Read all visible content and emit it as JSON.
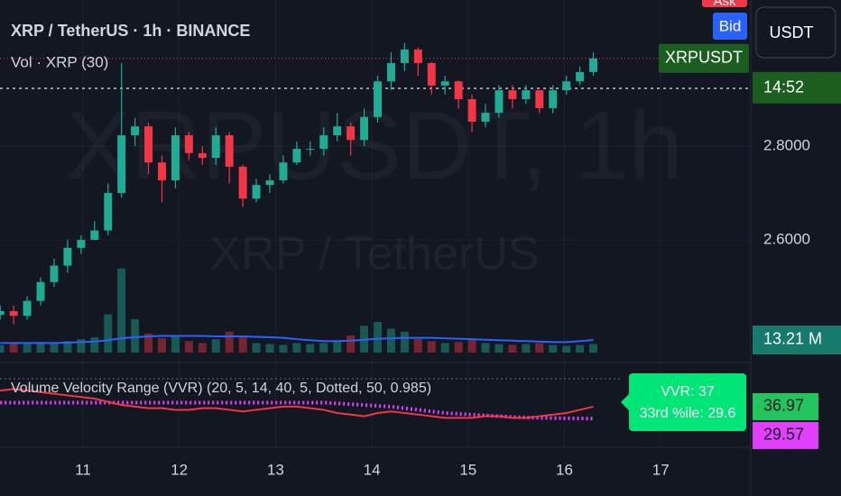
{
  "header": {
    "title": "XRP / TetherUS · 1h · BINANCE",
    "volume_label": "Vol · XRP (30)",
    "indicator_label": "Volume Velocity Range (VVR) (20, 5, 14, 40, 5, Dotted, 50, 0.985)",
    "watermark": "XRPUSDT, 1h",
    "watermark_sub": "XRP / TetherUS"
  },
  "toolbar": {
    "ask": "Ask",
    "bid": "Bid",
    "currency": "USDT"
  },
  "chart_data": {
    "type": "candlestick",
    "x": [
      10.14,
      10.28,
      10.42,
      10.56,
      10.7,
      10.84,
      10.98,
      11.12,
      11.26,
      11.4,
      11.54,
      11.68,
      11.82,
      11.96,
      12.1,
      12.24,
      12.38,
      12.52,
      12.66,
      12.8,
      12.94,
      13.08,
      13.22,
      13.36,
      13.5,
      13.64,
      13.78,
      13.92,
      14.06,
      14.2,
      14.34,
      14.48,
      14.62,
      14.76,
      14.9,
      15.04,
      15.18,
      15.32,
      15.46,
      15.6,
      15.74,
      15.88,
      16.02,
      16.16,
      16.3
    ],
    "open": [
      2.44,
      2.448,
      2.438,
      2.47,
      2.51,
      2.545,
      2.583,
      2.6,
      2.62,
      2.7,
      2.823,
      2.842,
      2.765,
      2.727,
      2.823,
      2.785,
      2.775,
      2.823,
      2.756,
      2.688,
      2.717,
      2.727,
      2.765,
      2.794,
      2.794,
      2.823,
      2.842,
      2.813,
      2.862,
      2.938,
      2.977,
      3.006,
      2.977,
      2.929,
      2.938,
      2.9,
      2.852,
      2.871,
      2.919,
      2.9,
      2.919,
      2.881,
      2.919,
      2.938,
      2.958
    ],
    "high": [
      2.46,
      2.46,
      2.48,
      2.52,
      2.56,
      2.6,
      2.61,
      2.64,
      2.72,
      2.977,
      2.86,
      2.85,
      2.78,
      2.84,
      2.83,
      2.8,
      2.84,
      2.83,
      2.76,
      2.73,
      2.74,
      2.78,
      2.81,
      2.81,
      2.84,
      2.87,
      2.85,
      2.88,
      2.95,
      3.0,
      3.02,
      3.01,
      2.98,
      2.95,
      2.94,
      2.91,
      2.89,
      2.93,
      2.93,
      2.93,
      2.92,
      2.93,
      2.95,
      2.97,
      3.0
    ],
    "low": [
      2.43,
      2.42,
      2.43,
      2.46,
      2.5,
      2.53,
      2.57,
      2.6,
      2.61,
      2.69,
      2.8,
      2.74,
      2.68,
      2.71,
      2.77,
      2.76,
      2.76,
      2.72,
      2.67,
      2.68,
      2.7,
      2.72,
      2.76,
      2.78,
      2.78,
      2.81,
      2.78,
      2.8,
      2.85,
      2.92,
      2.96,
      2.95,
      2.91,
      2.91,
      2.88,
      2.83,
      2.84,
      2.86,
      2.88,
      2.89,
      2.87,
      2.87,
      2.91,
      2.93,
      2.95
    ],
    "close": [
      2.448,
      2.438,
      2.47,
      2.51,
      2.545,
      2.583,
      2.6,
      2.62,
      2.7,
      2.823,
      2.842,
      2.765,
      2.727,
      2.823,
      2.785,
      2.775,
      2.823,
      2.756,
      2.688,
      2.717,
      2.727,
      2.765,
      2.794,
      2.794,
      2.823,
      2.842,
      2.813,
      2.862,
      2.938,
      2.977,
      3.006,
      2.977,
      2.929,
      2.938,
      2.9,
      2.852,
      2.871,
      2.919,
      2.9,
      2.919,
      2.881,
      2.919,
      2.938,
      2.958,
      2.987
    ],
    "up_color": "#22ab94",
    "down_color": "#f23645",
    "xlim": [
      10.138,
      17.935
    ],
    "xticks": [
      11,
      12,
      13,
      14,
      15,
      16,
      17
    ],
    "ylim": [
      2.3423,
      3.1115
    ],
    "yticks": [
      {
        "value": 2.6,
        "label": "2.6000"
      },
      {
        "value": 2.8,
        "label": "2.8000"
      }
    ],
    "symbol_tag": "XRPUSDT",
    "countdown": "14:52",
    "volume": {
      "ylim": [
        0,
        100
      ],
      "ma_color": "#2962ff",
      "values": [
        8,
        10,
        9,
        11,
        10,
        12,
        14,
        16,
        40,
        88,
        35,
        20,
        15,
        18,
        12,
        10,
        14,
        22,
        16,
        10,
        9,
        8,
        10,
        9,
        10,
        12,
        18,
        28,
        32,
        25,
        22,
        14,
        12,
        10,
        11,
        14,
        10,
        9,
        8,
        9,
        10,
        8,
        7,
        8,
        9
      ],
      "ma": [
        10,
        10,
        10,
        10,
        10,
        10.5,
        11,
        11.5,
        13,
        15,
        16,
        17,
        17.5,
        17.5,
        17.5,
        17.5,
        17,
        17,
        17,
        16.5,
        16,
        15.5,
        14,
        13,
        12,
        12,
        12.5,
        13.5,
        14.5,
        15,
        15.5,
        15.5,
        15.5,
        15,
        14.5,
        14,
        13.5,
        13,
        12.5,
        12,
        11.5,
        11,
        11,
        12,
        13.21
      ],
      "last": {
        "value": 13.21,
        "label": "13.21 M"
      }
    },
    "vvr": {
      "ylim": [
        15,
        60
      ],
      "line": {
        "color": "#f23645",
        "values": [
          47,
          48,
          47,
          46,
          45,
          44,
          43,
          42,
          40,
          38,
          37,
          36,
          36,
          35,
          35,
          36,
          36,
          35,
          34,
          35,
          36,
          37,
          37,
          36,
          35,
          33,
          32,
          31,
          33,
          34,
          33,
          32,
          31,
          30,
          30,
          30,
          31,
          31,
          30,
          30,
          31,
          32,
          33,
          35,
          36.97
        ]
      },
      "percentile": {
        "color": "#e040fb",
        "values": [
          39.5,
          39.5,
          39.5,
          39.5,
          39.5,
          39.5,
          39.5,
          39.5,
          39.5,
          39.5,
          39.5,
          39.5,
          39.5,
          39.5,
          39.5,
          39.5,
          39.5,
          39.5,
          39.5,
          39.5,
          39.5,
          39.5,
          39.5,
          39.5,
          39.5,
          39,
          38.5,
          38,
          37.5,
          37,
          36,
          35,
          34,
          33,
          32.5,
          32,
          31.5,
          31,
          30.5,
          30.2,
          30,
          29.8,
          29.7,
          29.6,
          29.57
        ]
      },
      "tags": [
        {
          "value": 36.97,
          "label": "36.97",
          "color": "#22c55e"
        },
        {
          "value": 29.57,
          "label": "29.57",
          "color": "#e040fb"
        }
      ],
      "box": [
        "VVR: 37",
        "33rd %ile: 29.6"
      ]
    }
  }
}
